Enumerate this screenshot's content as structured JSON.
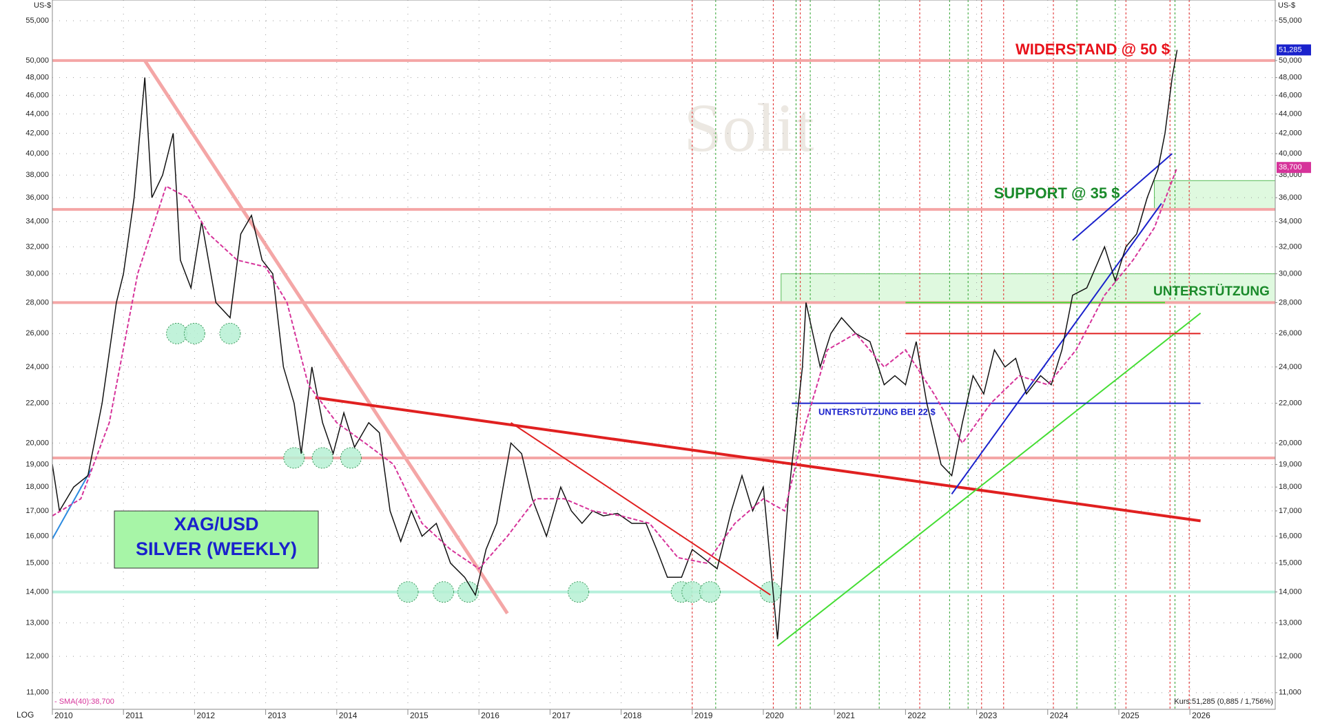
{
  "chart_data": {
    "type": "line",
    "log_scale": true,
    "grid": true,
    "axis_unit": "US-$",
    "scale_label": "LOG",
    "xlim": [
      2010,
      2027.2
    ],
    "xticks": [
      2010,
      2011,
      2012,
      2013,
      2014,
      2015,
      2016,
      2017,
      2018,
      2019,
      2020,
      2021,
      2022,
      2023,
      2024,
      2025,
      2026
    ],
    "ylim": [
      10570,
      57800
    ],
    "yticks": [
      {
        "value": 11000,
        "label": "11,000"
      },
      {
        "value": 12000,
        "label": "12,000"
      },
      {
        "value": 13000,
        "label": "13,000"
      },
      {
        "value": 14000,
        "label": "14,000"
      },
      {
        "value": 15000,
        "label": "15,000"
      },
      {
        "value": 16000,
        "label": "16,000"
      },
      {
        "value": 17000,
        "label": "17,000"
      },
      {
        "value": 18000,
        "label": "18,000"
      },
      {
        "value": 19000,
        "label": "19,000"
      },
      {
        "value": 20000,
        "label": "20,000"
      },
      {
        "value": 22000,
        "label": "22,000"
      },
      {
        "value": 24000,
        "label": "24,000"
      },
      {
        "value": 26000,
        "label": "26,000"
      },
      {
        "value": 28000,
        "label": "28,000"
      },
      {
        "value": 30000,
        "label": "30,000"
      },
      {
        "value": 32000,
        "label": "32,000"
      },
      {
        "value": 34000,
        "label": "34,000"
      },
      {
        "value": 36000,
        "label": "36,000"
      },
      {
        "value": 38000,
        "label": "38,000"
      },
      {
        "value": 40000,
        "label": "40,000"
      },
      {
        "value": 42000,
        "label": "42,000"
      },
      {
        "value": 44000,
        "label": "44,000"
      },
      {
        "value": 46000,
        "label": "46,000"
      },
      {
        "value": 48000,
        "label": "48,000"
      },
      {
        "value": 50000,
        "label": "50,000"
      },
      {
        "value": 55000,
        "label": "55,000"
      }
    ],
    "series": [
      {
        "name": "XAG/USD",
        "color": "#111111",
        "x": [
          2010.0,
          2010.1,
          2010.3,
          2010.5,
          2010.7,
          2010.9,
          2011.0,
          2011.15,
          2011.3,
          2011.4,
          2011.55,
          2011.7,
          2011.8,
          2011.95,
          2012.1,
          2012.3,
          2012.5,
          2012.65,
          2012.8,
          2012.95,
          2013.1,
          2013.25,
          2013.4,
          2013.5,
          2013.65,
          2013.8,
          2013.95,
          2014.1,
          2014.25,
          2014.45,
          2014.6,
          2014.75,
          2014.9,
          2015.05,
          2015.2,
          2015.4,
          2015.6,
          2015.8,
          2015.95,
          2016.1,
          2016.25,
          2016.45,
          2016.6,
          2016.75,
          2016.95,
          2017.15,
          2017.3,
          2017.45,
          2017.6,
          2017.75,
          2017.95,
          2018.15,
          2018.35,
          2018.5,
          2018.65,
          2018.85,
          2019.0,
          2019.15,
          2019.35,
          2019.55,
          2019.7,
          2019.85,
          2020.0,
          2020.2,
          2020.35,
          2020.55,
          2020.6,
          2020.8,
          2020.95,
          2021.1,
          2021.3,
          2021.5,
          2021.7,
          2021.85,
          2022.0,
          2022.15,
          2022.3,
          2022.5,
          2022.65,
          2022.8,
          2022.95,
          2023.1,
          2023.25,
          2023.4,
          2023.55,
          2023.7,
          2023.9,
          2024.05,
          2024.2,
          2024.35,
          2024.55,
          2024.8,
          2024.95,
          2025.1,
          2025.25,
          2025.4,
          2025.55,
          2025.65,
          2025.75,
          2025.82
        ],
        "values": [
          19000,
          17000,
          18000,
          18500,
          22000,
          28000,
          30000,
          36000,
          48000,
          36000,
          38000,
          42000,
          31000,
          29000,
          34000,
          28000,
          27000,
          33000,
          34500,
          31000,
          30000,
          24000,
          22000,
          19500,
          24000,
          21000,
          19500,
          21500,
          19800,
          21000,
          20500,
          17000,
          15800,
          17000,
          16000,
          16500,
          15000,
          14500,
          13900,
          15500,
          16500,
          20000,
          19500,
          17500,
          16000,
          18000,
          17000,
          16500,
          17000,
          16800,
          16900,
          16500,
          16500,
          15500,
          14500,
          14500,
          15500,
          15200,
          14800,
          17000,
          18500,
          17000,
          18000,
          12500,
          17500,
          24000,
          28000,
          24000,
          26000,
          27000,
          26000,
          25500,
          23000,
          23500,
          23000,
          25500,
          22000,
          19000,
          18500,
          21000,
          23500,
          22500,
          25000,
          24000,
          24500,
          22500,
          23500,
          23000,
          25000,
          28500,
          29000,
          32000,
          29500,
          32000,
          33000,
          36000,
          38500,
          42000,
          48000,
          51285
        ]
      },
      {
        "name": "SMA(40)",
        "color": "#d6339a",
        "x": [
          2010.0,
          2010.4,
          2010.8,
          2011.2,
          2011.6,
          2011.9,
          2012.2,
          2012.6,
          2013.0,
          2013.3,
          2013.6,
          2014.0,
          2014.4,
          2014.8,
          2015.2,
          2015.6,
          2016.0,
          2016.4,
          2016.8,
          2017.2,
          2017.6,
          2018.0,
          2018.4,
          2018.8,
          2019.2,
          2019.6,
          2020.0,
          2020.3,
          2020.6,
          2020.9,
          2021.3,
          2021.7,
          2022.0,
          2022.4,
          2022.8,
          2023.2,
          2023.6,
          2024.0,
          2024.4,
          2024.8,
          2025.2,
          2025.5,
          2025.82
        ],
        "values": [
          16800,
          17500,
          21000,
          30000,
          37000,
          36000,
          33000,
          31000,
          30500,
          28000,
          23000,
          21000,
          20000,
          19000,
          16500,
          15500,
          14800,
          16000,
          17500,
          17500,
          17000,
          16800,
          16500,
          15200,
          15000,
          16500,
          17500,
          17000,
          21000,
          25000,
          26000,
          24000,
          25000,
          22500,
          20000,
          22000,
          23500,
          23000,
          25000,
          28500,
          31000,
          33500,
          38700
        ]
      }
    ],
    "hlines": [
      {
        "value": 50000,
        "color": "#f4a6a6"
      },
      {
        "value": 35000,
        "color": "#f4a6a6"
      },
      {
        "value": 28000,
        "color": "#f4a6a6"
      },
      {
        "value": 19300,
        "color": "#f4a6a6"
      },
      {
        "value": 14000,
        "color": "#b6f0dc"
      }
    ],
    "zones": [
      {
        "x": [
          2020.25,
          2027.2
        ],
        "y": [
          28000,
          30000
        ]
      },
      {
        "x": [
          2025.5,
          2027.2
        ],
        "y": [
          35000,
          37500
        ]
      }
    ],
    "trendlines": [
      {
        "color": "#f4a6a6",
        "x": [
          2011.3,
          2016.4
        ],
        "y": [
          50000,
          13300
        ]
      },
      {
        "color": "#e02020",
        "x": [
          2013.7,
          2026.15
        ],
        "y": [
          22300,
          16600
        ]
      },
      {
        "color": "#e02020",
        "x": [
          2016.45,
          2020.1
        ],
        "y": [
          21000,
          13900
        ]
      },
      {
        "color": "#44dd33",
        "x": [
          2020.2,
          2026.15
        ],
        "y": [
          12300,
          27300
        ]
      },
      {
        "color": "#1a22cc",
        "x": [
          2020.4,
          2026.15
        ],
        "y": [
          22000,
          22000
        ]
      },
      {
        "color": "#44dd33",
        "x": [
          2022.0,
          2025.65
        ],
        "y": [
          28000,
          28000
        ]
      },
      {
        "color": "#e02020",
        "x": [
          2022.0,
          2026.15
        ],
        "y": [
          26000,
          26000
        ]
      },
      {
        "color": "#1a22cc",
        "x": [
          2022.65,
          2025.6
        ],
        "y": [
          17700,
          35500
        ]
      },
      {
        "color": "#1a22cc",
        "x": [
          2024.35,
          2025.75
        ],
        "y": [
          32500,
          40000
        ]
      },
      {
        "color": "#2b8ae0",
        "x": [
          2010.0,
          2010.55
        ],
        "y": [
          15900,
          18800
        ]
      }
    ],
    "vlines": [
      {
        "x": 2019.0,
        "color": "#e02020"
      },
      {
        "x": 2019.33,
        "color": "#2aa02a"
      },
      {
        "x": 2020.14,
        "color": "#e02020"
      },
      {
        "x": 2020.46,
        "color": "#2aa02a"
      },
      {
        "x": 2020.52,
        "color": "#e02020"
      },
      {
        "x": 2020.66,
        "color": "#2aa02a"
      },
      {
        "x": 2021.63,
        "color": "#2aa02a"
      },
      {
        "x": 2022.2,
        "color": "#e02020"
      },
      {
        "x": 2022.62,
        "color": "#2aa02a"
      },
      {
        "x": 2022.88,
        "color": "#2aa02a"
      },
      {
        "x": 2023.07,
        "color": "#e02020"
      },
      {
        "x": 2023.38,
        "color": "#e02020"
      },
      {
        "x": 2024.08,
        "color": "#e02020"
      },
      {
        "x": 2024.41,
        "color": "#2aa02a"
      },
      {
        "x": 2024.95,
        "color": "#2aa02a"
      },
      {
        "x": 2025.1,
        "color": "#e02020"
      },
      {
        "x": 2025.72,
        "color": "#e02020"
      },
      {
        "x": 2025.79,
        "color": "#2aa02a"
      },
      {
        "x": 2025.99,
        "color": "#e02020"
      }
    ],
    "markers": {
      "x": [
        2011.75,
        2012.0,
        2012.5,
        2013.4,
        2013.8,
        2014.2,
        2015.0,
        2015.5,
        2015.85,
        2017.4,
        2018.85,
        2019.0,
        2019.25,
        2020.1
      ],
      "y": [
        26000,
        26000,
        26000,
        19300,
        19300,
        19300,
        14000,
        14000,
        14000,
        14000,
        14000,
        14000,
        14000,
        14000
      ]
    },
    "price_label": {
      "value": 51285,
      "label": "51,285"
    },
    "sma_label": {
      "value": 38700,
      "label": "38,700"
    },
    "annotations": {
      "resistance": "WIDERSTAND @ 50 $",
      "support": "SUPPORT @ 35 $",
      "support_de": "UNTERSTÜTZUNG",
      "support_22": "UNTERSTÜTZUNG BEI 22 $",
      "title_1": "XAG/USD",
      "title_2": "SILVER (WEEKLY)",
      "sma_legend": "- SMA(40):38,700",
      "quote": "Kurs:51,285 (0,885 / 1,756%)",
      "watermark": "Solit"
    }
  }
}
